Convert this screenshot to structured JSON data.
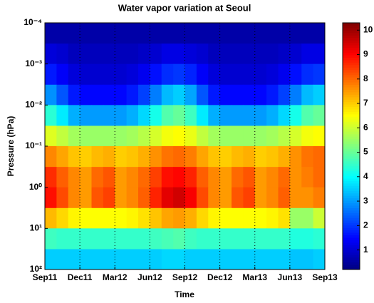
{
  "chart_data": {
    "type": "heatmap",
    "title": "Water vapor variation at Seoul",
    "x_label": "Time",
    "y_label": "Pressure (hPa)",
    "x_bins": [
      "Sep11",
      null,
      null,
      "Dec11",
      null,
      null,
      "Mar12",
      null,
      null,
      "Jun12",
      null,
      null,
      "Sep12",
      null,
      null,
      "Dec12",
      null,
      null,
      "Mar13",
      null,
      null,
      "Jun13",
      null,
      null,
      "Sep13"
    ],
    "y_bins": [
      0.0001,
      0.00032,
      0.001,
      0.0032,
      0.01,
      0.032,
      0.1,
      0.32,
      1,
      3.2,
      10,
      32,
      100
    ],
    "ylim": [
      100,
      0.0001
    ],
    "log_y": true,
    "yticks": [
      {
        "value": 0.0001,
        "label": "10⁻⁴"
      },
      {
        "value": 0.001,
        "label": "10⁻³"
      },
      {
        "value": 0.01,
        "label": "10⁻²"
      },
      {
        "value": 0.1,
        "label": "10⁻¹"
      },
      {
        "value": 1,
        "label": "10⁰"
      },
      {
        "value": 10,
        "label": "10¹"
      },
      {
        "value": 100,
        "label": "10²"
      }
    ],
    "x_grid": true,
    "colormap": "jet",
    "clim": [
      0.2,
      10.3
    ],
    "cticks": [
      1,
      2,
      3,
      4,
      5,
      6,
      7,
      8,
      9,
      10
    ],
    "values": [
      [
        0.6,
        0.6,
        0.6,
        0.6,
        0.6,
        0.6,
        0.6,
        0.6,
        0.6,
        0.6,
        0.6,
        0.6,
        0.6,
        0.6,
        0.6,
        0.6,
        0.6,
        0.6,
        0.6,
        0.6,
        0.6,
        0.6,
        0.6,
        0.6
      ],
      [
        1.1,
        1,
        0.8,
        0.8,
        0.8,
        0.8,
        0.8,
        0.8,
        0.9,
        1,
        1.2,
        1.2,
        1.1,
        1,
        0.8,
        0.8,
        0.8,
        0.8,
        0.8,
        0.8,
        0.9,
        1,
        1.2,
        1.2
      ],
      [
        1.7,
        1.4,
        1.1,
        1,
        1,
        1,
        1,
        1.1,
        1.3,
        1.6,
        1.9,
        2,
        1.8,
        1.4,
        1.1,
        1,
        1,
        1,
        1,
        1.1,
        1.3,
        1.6,
        1.9,
        2
      ],
      [
        2.9,
        2.3,
        1.7,
        1.5,
        1.5,
        1.5,
        1.5,
        1.7,
        2.1,
        2.7,
        3.3,
        3.5,
        3.1,
        2.3,
        1.7,
        1.5,
        1.5,
        1.5,
        1.5,
        1.7,
        2.1,
        2.7,
        3.3,
        3.5
      ],
      [
        4.4,
        3.8,
        3.2,
        3,
        3,
        3,
        3,
        3.2,
        3.6,
        4.2,
        4.8,
        5,
        4.6,
        3.8,
        3.2,
        3,
        3,
        3,
        3,
        3.2,
        3.6,
        4.2,
        4.8,
        5
      ],
      [
        6.2,
        5.9,
        5.6,
        5.5,
        5.5,
        5.5,
        5.5,
        5.6,
        5.8,
        6.1,
        6.4,
        6.5,
        6.3,
        5.9,
        5.6,
        5.5,
        5.5,
        5.5,
        5.5,
        5.6,
        5.8,
        6.1,
        6.4,
        6.5
      ],
      [
        7.7,
        7.4,
        7.1,
        7,
        7.2,
        7.3,
        7,
        7.1,
        7.3,
        7.6,
        7.9,
        8,
        7.8,
        7.4,
        7.1,
        7,
        7.2,
        7.3,
        7,
        7.1,
        7.3,
        7.6,
        7.9,
        8
      ],
      [
        8.6,
        8.1,
        7.7,
        7.5,
        8,
        8.2,
        7.5,
        7.7,
        8,
        8.4,
        8.9,
        9,
        8.7,
        8.1,
        7.7,
        7.5,
        8,
        8.2,
        7.5,
        7.7,
        8,
        7.6,
        7.8,
        8
      ],
      [
        8.9,
        8.3,
        7.7,
        7.5,
        8.2,
        8.4,
        7.5,
        7.7,
        8.1,
        8.7,
        9.3,
        9.5,
        9.1,
        8.3,
        7.7,
        7.5,
        8.2,
        8.4,
        7.5,
        7.7,
        8.1,
        7.6,
        7.6,
        7.8
      ],
      [
        7.2,
        6.9,
        6.6,
        6.5,
        6.5,
        6.5,
        6.5,
        6.6,
        6.8,
        7.1,
        7.4,
        7.5,
        7.3,
        6.9,
        6.6,
        6.5,
        6.5,
        6.5,
        6.5,
        6.6,
        6.8,
        5.5,
        5.5,
        6
      ],
      [
        4.6,
        4.5,
        4.5,
        4.5,
        4.5,
        4.5,
        4.5,
        4.5,
        4.5,
        4.6,
        4.7,
        4.8,
        4.6,
        4.5,
        4.5,
        4.5,
        4.5,
        4.5,
        4.5,
        4.5,
        4.5,
        4.3,
        4.3,
        4.4
      ],
      [
        3.5,
        3.5,
        3.5,
        3.5,
        3.5,
        3.5,
        3.5,
        3.5,
        3.5,
        3.5,
        3.6,
        3.6,
        3.5,
        3.5,
        3.5,
        3.5,
        3.5,
        3.5,
        3.5,
        3.5,
        3.5,
        3.4,
        3.4,
        3.5
      ]
    ]
  }
}
